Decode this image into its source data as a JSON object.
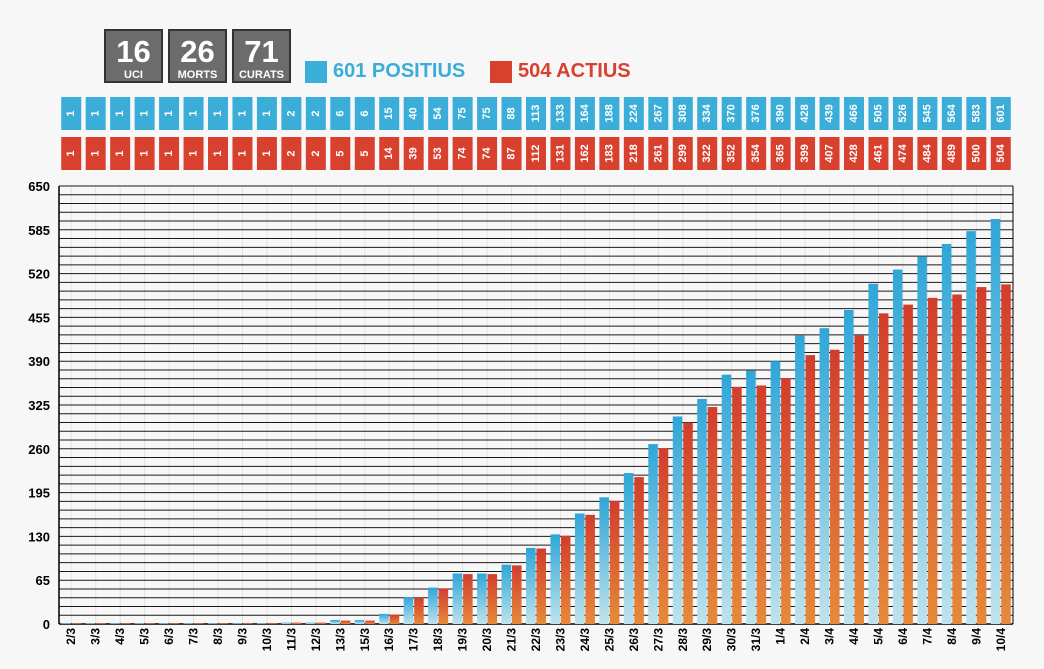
{
  "stats": [
    {
      "value": "16",
      "label": "UCI"
    },
    {
      "value": "26",
      "label": "MORTS"
    },
    {
      "value": "71",
      "label": "CURATS"
    }
  ],
  "legend": {
    "positius": {
      "label": "601 POSITIUS",
      "color": "#3aaed8"
    },
    "actius": {
      "label": "504 ACTIUS",
      "color": "#d9412f"
    }
  },
  "chart_data": {
    "type": "bar",
    "categories": [
      "2/3",
      "3/3",
      "4/3",
      "5/3",
      "6/3",
      "7/3",
      "8/3",
      "9/3",
      "10/3",
      "11/3",
      "12/3",
      "13/3",
      "15/3",
      "16/3",
      "17/3",
      "18/3",
      "19/3",
      "20/3",
      "21/3",
      "22/3",
      "23/3",
      "24/3",
      "25/3",
      "26/3",
      "27/3",
      "28/3",
      "29/3",
      "30/3",
      "31/3",
      "1/4",
      "2/4",
      "3/4",
      "4/4",
      "5/4",
      "6/4",
      "7/4",
      "8/4",
      "9/4",
      "10/4"
    ],
    "series": [
      {
        "name": "POSITIUS",
        "color": "#3aaed8",
        "values": [
          1,
          1,
          1,
          1,
          1,
          1,
          1,
          1,
          1,
          2,
          2,
          6,
          6,
          15,
          40,
          54,
          75,
          75,
          88,
          113,
          133,
          164,
          188,
          224,
          267,
          308,
          334,
          370,
          376,
          390,
          428,
          439,
          466,
          505,
          526,
          545,
          564,
          583,
          601
        ]
      },
      {
        "name": "ACTIUS",
        "color": "#d9412f",
        "values": [
          1,
          1,
          1,
          1,
          1,
          1,
          1,
          1,
          1,
          2,
          2,
          5,
          5,
          14,
          39,
          53,
          74,
          74,
          87,
          112,
          131,
          162,
          183,
          218,
          261,
          299,
          322,
          352,
          354,
          365,
          399,
          407,
          428,
          461,
          474,
          484,
          489,
          500,
          504
        ]
      }
    ],
    "yticks": [
      0,
      65,
      130,
      195,
      260,
      325,
      390,
      455,
      520,
      585,
      650
    ],
    "ylim": [
      0,
      650
    ],
    "grid": true
  }
}
